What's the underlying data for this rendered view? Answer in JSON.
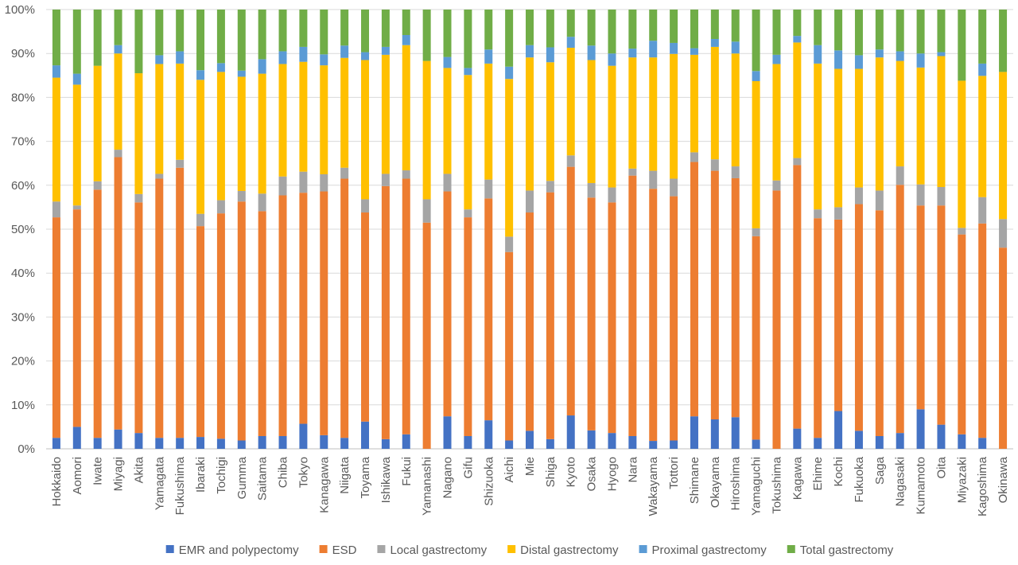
{
  "chart_data": {
    "type": "bar",
    "stacked": true,
    "percent": true,
    "title": "",
    "xlabel": "",
    "ylabel": "",
    "ylim": [
      0,
      100
    ],
    "y_ticks": [
      "0%",
      "10%",
      "20%",
      "30%",
      "40%",
      "50%",
      "60%",
      "70%",
      "80%",
      "90%",
      "100%"
    ],
    "grid": true,
    "legend_position": "bottom",
    "categories": [
      "Hokkaido",
      "Aomori",
      "Iwate",
      "Miyagi",
      "Akita",
      "Yamagata",
      "Fukushima",
      "Ibaraki",
      "Tochigi",
      "Gumma",
      "Saitama",
      "Chiba",
      "Tokyo",
      "Kanagawa",
      "Niigata",
      "Toyama",
      "Ishikawa",
      "Fukui",
      "Yamanashi",
      "Nagano",
      "Gifu",
      "Shizuoka",
      "Aichi",
      "Mie",
      "Shiga",
      "Kyoto",
      "Osaka",
      "Hyogo",
      "Nara",
      "Wakayama",
      "Tottori",
      "Shimane",
      "Okayama",
      "Hiroshima",
      "Yamaguchi",
      "Tokushima",
      "Kagawa",
      "Ehime",
      "Kochi",
      "Fukuoka",
      "Saga",
      "Nagasaki",
      "Kumamoto",
      "Oita",
      "Miyazaki",
      "Kagoshima",
      "Okinawa"
    ],
    "series": [
      {
        "name": "EMR and polypectomy",
        "color": "#4472C4",
        "values": [
          2.5,
          5.0,
          2.5,
          4.4,
          3.6,
          2.5,
          2.5,
          2.7,
          2.3,
          1.9,
          2.9,
          2.9,
          5.7,
          3.1,
          2.5,
          6.2,
          2.2,
          3.3,
          0.0,
          7.4,
          2.9,
          6.5,
          1.9,
          4.1,
          2.2,
          7.6,
          4.2,
          3.6,
          2.9,
          1.8,
          1.9,
          7.4,
          6.7,
          7.2,
          2.1,
          0.0,
          4.6,
          2.5,
          8.6,
          4.1,
          2.9,
          3.6,
          9.0,
          5.5,
          3.3,
          2.5,
          0.0
        ]
      },
      {
        "name": "ESD",
        "color": "#ED7D31",
        "values": [
          50.2,
          49.5,
          56.5,
          62.0,
          52.5,
          59.0,
          61.5,
          48.0,
          51.3,
          54.4,
          51.2,
          54.8,
          52.6,
          55.5,
          59.0,
          47.6,
          57.6,
          58.2,
          51.5,
          51.2,
          49.8,
          50.5,
          42.9,
          49.7,
          56.2,
          56.6,
          53.0,
          52.5,
          59.3,
          57.4,
          55.6,
          57.9,
          56.6,
          54.4,
          46.3,
          58.8,
          60.0,
          50.0,
          43.6,
          51.6,
          51.4,
          56.5,
          46.4,
          49.9,
          45.5,
          48.8,
          45.8
        ]
      },
      {
        "name": "Local gastrectomy",
        "color": "#A5A5A5",
        "values": [
          3.6,
          0.9,
          1.9,
          1.7,
          1.9,
          1.1,
          1.8,
          2.8,
          3.0,
          2.4,
          4.0,
          4.3,
          4.8,
          3.9,
          2.5,
          3.0,
          2.8,
          1.9,
          5.3,
          4.0,
          1.8,
          4.3,
          3.5,
          5.0,
          2.6,
          2.6,
          3.3,
          3.4,
          1.6,
          4.1,
          4.0,
          2.2,
          2.6,
          2.7,
          1.8,
          2.3,
          1.6,
          2.0,
          2.8,
          3.8,
          4.5,
          4.2,
          4.8,
          4.2,
          1.5,
          6.0,
          6.5
        ]
      },
      {
        "name": "Distal gastrectomy",
        "color": "#FFC000",
        "values": [
          28.2,
          27.5,
          26.3,
          21.9,
          27.5,
          25.0,
          21.9,
          30.5,
          29.2,
          26.0,
          27.3,
          25.6,
          25.0,
          24.8,
          25.0,
          31.7,
          27.1,
          28.5,
          31.5,
          24.1,
          30.6,
          26.4,
          35.9,
          30.3,
          27.0,
          24.5,
          28.0,
          27.7,
          25.3,
          25.8,
          28.4,
          22.2,
          25.6,
          25.7,
          33.5,
          26.5,
          26.3,
          33.2,
          31.5,
          27.0,
          30.3,
          24.0,
          26.6,
          29.8,
          33.5,
          27.6,
          33.5
        ]
      },
      {
        "name": "Proximal gastrectomy",
        "color": "#5B9BD5",
        "values": [
          2.8,
          2.5,
          0.0,
          1.9,
          0.0,
          2.0,
          2.8,
          2.2,
          2.0,
          1.4,
          3.3,
          2.9,
          3.4,
          2.5,
          2.8,
          1.8,
          1.8,
          2.3,
          0.0,
          2.5,
          1.6,
          3.2,
          2.8,
          2.8,
          3.4,
          2.5,
          3.3,
          2.8,
          2.0,
          3.8,
          2.5,
          1.5,
          1.8,
          2.7,
          2.3,
          2.1,
          1.5,
          4.2,
          4.2,
          3.1,
          1.8,
          2.2,
          3.2,
          0.9,
          0.0,
          2.8,
          0.0
        ]
      },
      {
        "name": "Total gastrectomy",
        "color": "#70AD47",
        "values": [
          12.7,
          14.6,
          12.8,
          8.1,
          14.5,
          10.4,
          9.5,
          13.8,
          12.2,
          13.9,
          11.3,
          9.5,
          8.5,
          10.2,
          8.2,
          9.7,
          8.5,
          5.8,
          11.7,
          10.8,
          13.3,
          9.1,
          13.0,
          8.1,
          8.6,
          6.2,
          8.2,
          10.0,
          8.9,
          7.1,
          7.6,
          8.8,
          6.7,
          7.3,
          14.0,
          10.3,
          6.0,
          8.1,
          9.3,
          10.4,
          9.1,
          9.5,
          10.0,
          9.7,
          16.2,
          12.3,
          14.2
        ]
      }
    ]
  }
}
